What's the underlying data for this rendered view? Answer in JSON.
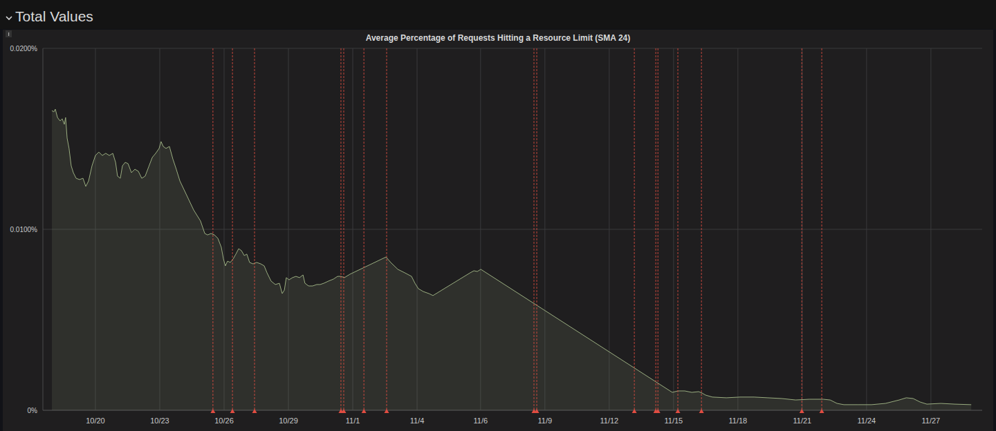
{
  "header": {
    "title": "Total Values"
  },
  "chart_data": {
    "type": "area",
    "title": "Average Percentage of Requests Hitting a Resource Limit (SMA 24)",
    "color": "#9aad80",
    "grid": true,
    "xlim": [
      17.55,
      61.35
    ],
    "ylim": [
      0,
      0.02
    ],
    "xticks": [
      {
        "value": 20,
        "label": "10/20"
      },
      {
        "value": 23,
        "label": "10/23"
      },
      {
        "value": 26,
        "label": "10/26"
      },
      {
        "value": 29,
        "label": "10/29"
      },
      {
        "value": 32,
        "label": "11/1"
      },
      {
        "value": 35,
        "label": "11/4"
      },
      {
        "value": 37.96,
        "label": "11/6"
      },
      {
        "value": 40.96,
        "label": "11/9"
      },
      {
        "value": 43.96,
        "label": "11/12"
      },
      {
        "value": 46.96,
        "label": "11/15"
      },
      {
        "value": 49.96,
        "label": "11/18"
      },
      {
        "value": 52.96,
        "label": "11/21"
      },
      {
        "value": 55.96,
        "label": "11/24"
      },
      {
        "value": 58.96,
        "label": "11/27"
      }
    ],
    "yticks": [
      {
        "value": 0,
        "label": "0%"
      },
      {
        "value": 0.01,
        "label": "0.0100%"
      },
      {
        "value": 0.02,
        "label": "0.0200%"
      }
    ],
    "annotations": [
      25.48,
      26.39,
      27.42,
      31.45,
      31.58,
      32.52,
      33.58,
      40.45,
      40.58,
      45.13,
      46.13,
      46.23,
      47.16,
      48.26,
      52.94,
      53.87
    ],
    "x": [
      17.97,
      18.06,
      18.13,
      18.23,
      18.35,
      18.45,
      18.55,
      18.61,
      18.68,
      18.77,
      18.87,
      18.97,
      19.1,
      19.26,
      19.42,
      19.55,
      19.68,
      19.84,
      20.0,
      20.16,
      20.32,
      20.48,
      20.65,
      20.81,
      20.94,
      21.03,
      21.16,
      21.26,
      21.39,
      21.52,
      21.68,
      21.84,
      22.0,
      22.16,
      22.32,
      22.48,
      22.65,
      22.81,
      22.97,
      23.06,
      23.16,
      23.29,
      23.45,
      23.61,
      23.77,
      23.94,
      24.26,
      24.58,
      24.9,
      25.1,
      25.23,
      25.39,
      25.55,
      25.71,
      25.87,
      25.97,
      26.06,
      26.16,
      26.29,
      26.42,
      26.55,
      26.68,
      26.81,
      26.94,
      27.06,
      27.19,
      27.35,
      27.52,
      27.71,
      27.87,
      28.0,
      28.19,
      28.39,
      28.58,
      28.71,
      28.81,
      28.9,
      29.03,
      29.19,
      29.35,
      29.52,
      29.68,
      29.77,
      29.94,
      30.13,
      30.32,
      30.48,
      30.65,
      30.87,
      31.1,
      31.29,
      31.45,
      31.61,
      31.87,
      33.55,
      33.77,
      34.1,
      34.42,
      34.74,
      34.9,
      35.06,
      35.29,
      35.55,
      35.74,
      37.48,
      37.65,
      37.81,
      37.97,
      46.9,
      47.16,
      47.48,
      47.81,
      48.13,
      48.29,
      48.45,
      48.77,
      49.42,
      50.06,
      50.71,
      51.35,
      52.0,
      52.65,
      53.29,
      53.94,
      54.26,
      54.58,
      54.9,
      55.55,
      56.19,
      56.84,
      57.48,
      57.81,
      58.13,
      58.45,
      58.77,
      59.42,
      60.06,
      60.84
    ],
    "values": [
      0.01656,
      0.01649,
      0.01664,
      0.01618,
      0.01599,
      0.01611,
      0.0158,
      0.01618,
      0.01504,
      0.01447,
      0.01351,
      0.01313,
      0.01282,
      0.01275,
      0.01282,
      0.01237,
      0.01267,
      0.01351,
      0.01408,
      0.01427,
      0.01408,
      0.0142,
      0.01408,
      0.0142,
      0.0137,
      0.01294,
      0.01282,
      0.01351,
      0.0137,
      0.01363,
      0.01313,
      0.01332,
      0.01321,
      0.01282,
      0.01294,
      0.01344,
      0.01397,
      0.0142,
      0.01447,
      0.01485,
      0.01458,
      0.01447,
      0.01458,
      0.01389,
      0.01332,
      0.01267,
      0.01187,
      0.01107,
      0.01046,
      0.00977,
      0.00969,
      0.00977,
      0.00969,
      0.0095,
      0.00901,
      0.00836,
      0.00798,
      0.00824,
      0.00817,
      0.00836,
      0.00863,
      0.00893,
      0.00882,
      0.00855,
      0.00863,
      0.00817,
      0.00809,
      0.00817,
      0.00809,
      0.00798,
      0.0076,
      0.00714,
      0.00695,
      0.00702,
      0.00645,
      0.00664,
      0.00733,
      0.00721,
      0.00733,
      0.0074,
      0.00733,
      0.00748,
      0.00702,
      0.00687,
      0.00687,
      0.00695,
      0.00695,
      0.00702,
      0.00714,
      0.00725,
      0.0074,
      0.0074,
      0.00733,
      0.00752,
      0.00847,
      0.00817,
      0.00779,
      0.0076,
      0.0074,
      0.00702,
      0.00672,
      0.00656,
      0.00645,
      0.00634,
      0.0076,
      0.00771,
      0.00767,
      0.00779,
      0.00099,
      0.00107,
      0.00107,
      0.00099,
      0.00103,
      0.00095,
      0.00084,
      0.00073,
      0.00069,
      0.00073,
      0.00073,
      0.00069,
      0.00065,
      0.00057,
      0.00061,
      0.00061,
      0.00057,
      0.00038,
      0.00031,
      0.00031,
      0.00031,
      0.00038,
      0.00057,
      0.00069,
      0.00065,
      0.00046,
      0.00034,
      0.00038,
      0.00034,
      0.00031
    ]
  }
}
